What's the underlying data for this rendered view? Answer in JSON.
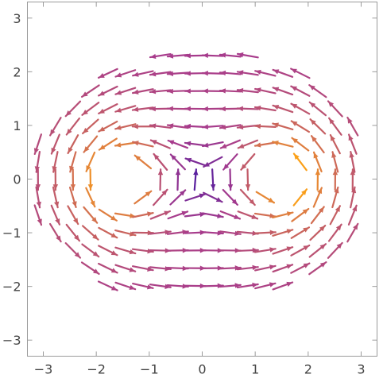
{
  "chart_data": {
    "type": "vector-field",
    "title": "",
    "xlabel": "",
    "ylabel": "",
    "xlim": [
      -3.3,
      3.3
    ],
    "ylim": [
      -3.3,
      3.3
    ],
    "x_ticks": [
      "-3",
      "-2",
      "-1",
      "0",
      "1",
      "2",
      "3"
    ],
    "y_ticks": [
      "3",
      "2",
      "1",
      "0",
      "-1",
      "-2",
      "-3"
    ],
    "grid": false,
    "legend": false,
    "color_scale": {
      "description": "arrow color encodes magnitude",
      "low": "#2e0fa8",
      "mid": "#a83c8c",
      "high": "#fba018"
    },
    "field": {
      "expression": "curl of vortex pair",
      "sources": [
        {
          "x": -1.5,
          "y": 0,
          "circulation": 1
        },
        {
          "x": 1.5,
          "y": 0,
          "circulation": 1
        }
      ],
      "grid_x_range": [
        -3.1,
        3.1
      ],
      "grid_y_range": [
        -2.3,
        2.3
      ],
      "spacing": 0.33,
      "exclusion_radius": 0.45,
      "domain_note": "vectors shown inside elliptical region"
    }
  }
}
